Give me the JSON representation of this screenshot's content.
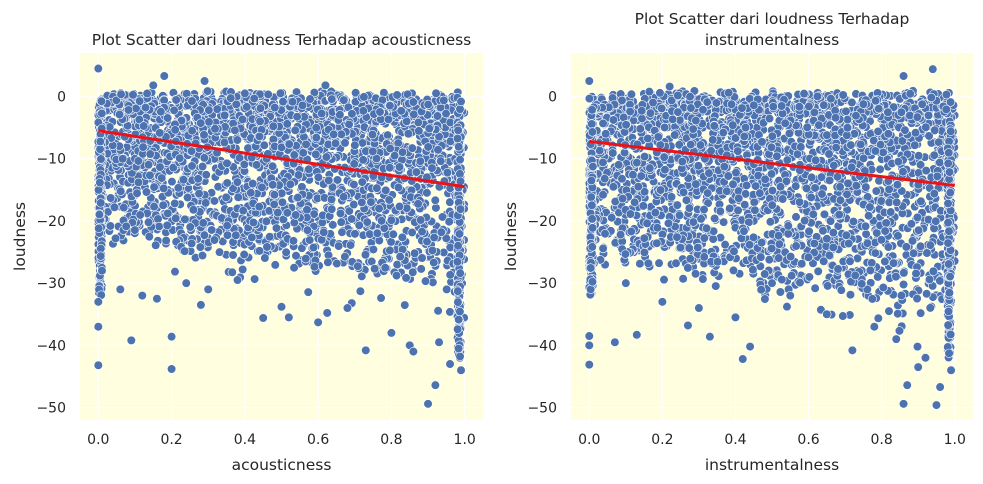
{
  "chart_data": [
    {
      "type": "scatter",
      "title": [
        "Plot Scatter dari loudness Terhadap acousticness"
      ],
      "xlabel": "acousticness",
      "ylabel": "loudness",
      "xlim": [
        -0.05,
        1.05
      ],
      "ylim": [
        -52,
        7
      ],
      "xticks": [
        0.0,
        0.2,
        0.4,
        0.6,
        0.8,
        1.0
      ],
      "xtick_labels": [
        "0.0",
        "0.2",
        "0.4",
        "0.6",
        "0.8",
        "1.0"
      ],
      "yticks": [
        0,
        -10,
        -20,
        -30,
        -40,
        -50
      ],
      "ytick_labels": [
        "0",
        "−10",
        "−20",
        "−30",
        "−40",
        "−50"
      ],
      "background": "#ffffe0",
      "point_color": "#4c72b0",
      "line_color": "#e8141a",
      "grid": true,
      "regression": {
        "x": [
          0.0,
          1.0
        ],
        "y": [
          -5.5,
          -14.5
        ]
      },
      "points": [
        [
          0.0,
          4.5
        ],
        [
          0.0,
          -43.2
        ],
        [
          0.0,
          -37.0
        ],
        [
          0.0,
          -33.0
        ],
        [
          0.01,
          -28.0
        ],
        [
          0.09,
          -39.2
        ],
        [
          0.2,
          -43.8
        ],
        [
          0.2,
          -38.6
        ],
        [
          0.29,
          2.5
        ],
        [
          0.18,
          3.3
        ],
        [
          0.15,
          1.8
        ],
        [
          0.45,
          -35.6
        ],
        [
          0.52,
          -35.5
        ],
        [
          0.73,
          -40.8
        ],
        [
          0.85,
          -40.0
        ],
        [
          0.9,
          -49.4
        ],
        [
          0.92,
          -46.4
        ],
        [
          0.96,
          -43.0
        ],
        [
          0.99,
          -44.0
        ],
        [
          0.99,
          -0.8
        ],
        [
          0.62,
          1.8
        ],
        [
          0.4,
          0.5
        ],
        [
          0.28,
          -33.5
        ],
        [
          0.06,
          -31.0
        ],
        [
          0.12,
          -32.0
        ],
        [
          0.16,
          -32.5
        ],
        [
          0.3,
          -31.0
        ],
        [
          0.38,
          -29.5
        ],
        [
          0.6,
          -36.3
        ],
        [
          0.68,
          -34.0
        ],
        [
          0.8,
          -38.0
        ],
        [
          0.86,
          -41.0
        ],
        [
          0.93,
          -39.5
        ],
        [
          0.5,
          -33.8
        ],
        [
          0.24,
          -30.0
        ]
      ]
    },
    {
      "type": "scatter",
      "title": [
        "Plot Scatter dari loudness Terhadap",
        "instrumentalness"
      ],
      "xlabel": "instrumentalness",
      "ylabel": "loudness",
      "xlim": [
        -0.05,
        1.05
      ],
      "ylim": [
        -52,
        7
      ],
      "xticks": [
        0.0,
        0.2,
        0.4,
        0.6,
        0.8,
        1.0
      ],
      "xtick_labels": [
        "0.0",
        "0.2",
        "0.4",
        "0.6",
        "0.8",
        "1.0"
      ],
      "yticks": [
        0,
        -10,
        -20,
        -30,
        -40,
        -50
      ],
      "ytick_labels": [
        "0",
        "−10",
        "−20",
        "−30",
        "−40",
        "−50"
      ],
      "background": "#ffffe0",
      "point_color": "#4c72b0",
      "line_color": "#e8141a",
      "grid": true,
      "regression": {
        "x": [
          0.0,
          1.0
        ],
        "y": [
          -7.2,
          -14.3
        ]
      },
      "points": [
        [
          0.0,
          2.5
        ],
        [
          0.0,
          -43.1
        ],
        [
          0.0,
          -40.0
        ],
        [
          0.0,
          -38.5
        ],
        [
          0.07,
          -39.5
        ],
        [
          0.13,
          -38.3
        ],
        [
          0.27,
          -36.8
        ],
        [
          0.42,
          -42.2
        ],
        [
          0.44,
          -40.2
        ],
        [
          0.72,
          -40.8
        ],
        [
          0.86,
          -49.4
        ],
        [
          0.95,
          -49.6
        ],
        [
          0.94,
          4.4
        ],
        [
          0.86,
          3.3
        ],
        [
          0.22,
          1.6
        ],
        [
          0.87,
          -46.4
        ],
        [
          0.96,
          -46.7
        ],
        [
          0.9,
          -43.5
        ],
        [
          0.99,
          -44.0
        ],
        [
          0.33,
          -38.6
        ],
        [
          0.1,
          -30.0
        ],
        [
          0.2,
          -33.0
        ],
        [
          0.3,
          -34.0
        ],
        [
          0.55,
          -32.0
        ],
        [
          0.65,
          -35.0
        ],
        [
          0.78,
          -37.0
        ],
        [
          0.84,
          -39.0
        ],
        [
          0.92,
          -42.0
        ],
        [
          0.5,
          -30.0
        ],
        [
          0.4,
          -35.5
        ]
      ]
    }
  ]
}
